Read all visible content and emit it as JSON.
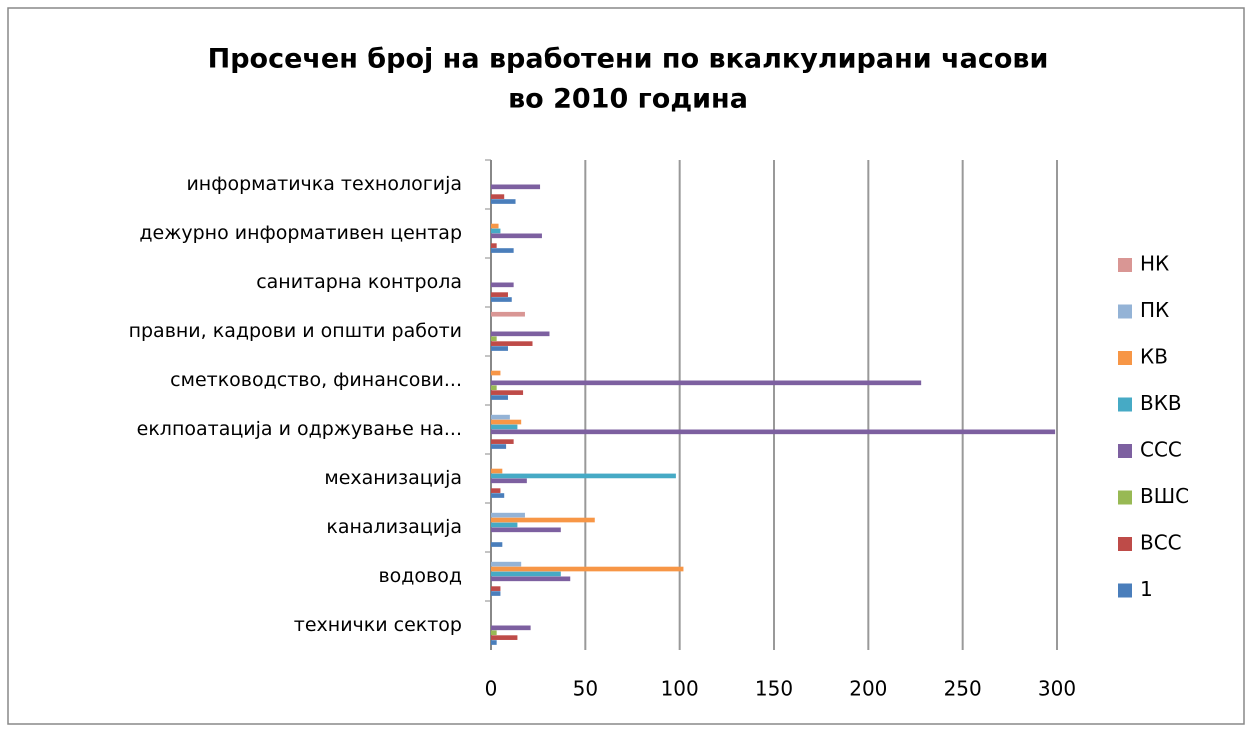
{
  "chart_data": {
    "type": "bar",
    "orientation": "horizontal",
    "title": [
      "Просечен број на вработени по вкалкулирани часови",
      "во 2010 година"
    ],
    "categories": [
      "технички сектор",
      "водовод",
      "канализација",
      "механизација",
      "еклпоатација и одржување на...",
      "сметководство, финансови...",
      "правни, кадрови и општи работи",
      "санитарна контрола",
      "дежурно информативен центар",
      "информатичка технологија"
    ],
    "series": [
      {
        "name": "1",
        "color": "#4a7ebb",
        "values": [
          3,
          5,
          6,
          7,
          8,
          9,
          9,
          11,
          12,
          13
        ]
      },
      {
        "name": "ВСС",
        "color": "#be4b48",
        "values": [
          14,
          5,
          0,
          5,
          12,
          17,
          22,
          9,
          3,
          7
        ]
      },
      {
        "name": "ВШС",
        "color": "#98b954",
        "values": [
          3,
          0,
          0,
          0,
          0,
          3,
          3,
          0,
          0,
          0
        ]
      },
      {
        "name": "ССС",
        "color": "#7d60a0",
        "values": [
          21,
          42,
          37,
          19,
          299,
          228,
          31,
          12,
          27,
          26
        ]
      },
      {
        "name": "ВКВ",
        "color": "#46aac5",
        "values": [
          0,
          37,
          14,
          98,
          14,
          0,
          0,
          0,
          5,
          0
        ]
      },
      {
        "name": "КВ",
        "color": "#f79646",
        "values": [
          0,
          102,
          55,
          6,
          16,
          5,
          0,
          0,
          4,
          0
        ]
      },
      {
        "name": "ПК",
        "color": "#94b3d6",
        "values": [
          0,
          16,
          18,
          0,
          10,
          0,
          0,
          0,
          0,
          0
        ]
      },
      {
        "name": "НК",
        "color": "#d99694",
        "values": [
          0,
          0,
          0,
          0,
          0,
          0,
          18,
          0,
          0,
          0
        ]
      }
    ],
    "xlim": [
      0,
      300
    ],
    "xticks": [
      0,
      50,
      100,
      150,
      200,
      250,
      300
    ],
    "grid": true,
    "legend": "right"
  }
}
